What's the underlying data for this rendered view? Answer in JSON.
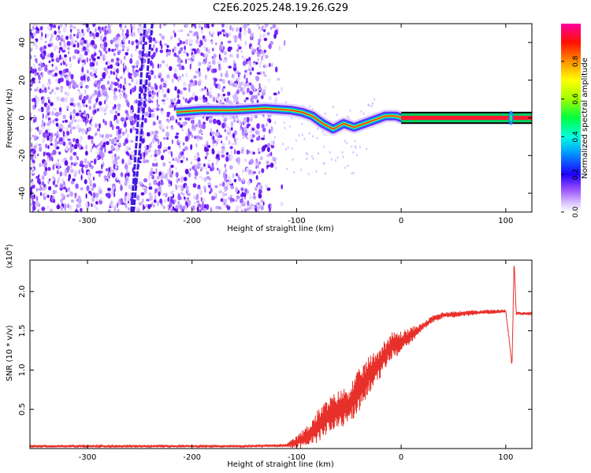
{
  "title": "C2E6.2025.248.19.26.G29",
  "spectrogram": {
    "type": "heatmap",
    "xlabel": "Height of straight line (km)",
    "ylabel": "Frequency (Hz)",
    "xlim": [
      -355,
      125
    ],
    "ylim": [
      -50,
      50
    ],
    "xticks": [
      -300,
      -200,
      -100,
      0,
      100
    ],
    "yticks": [
      -40,
      -20,
      0,
      20,
      40
    ],
    "noise_region": [
      -355,
      -120
    ],
    "signal_track": {
      "x": [
        -215,
        -190,
        -160,
        -130,
        -105,
        -95,
        -85,
        -75,
        -65,
        -55,
        -45,
        -35,
        -25,
        -15,
        -5,
        0,
        50,
        100,
        125
      ],
      "y": [
        3,
        4,
        4,
        5,
        4,
        3,
        1,
        -3,
        -6,
        -3,
        -5,
        -3,
        -1,
        1,
        1,
        0,
        0,
        0,
        0
      ]
    },
    "streaks": [
      {
        "x": [
          -258,
          -245
        ],
        "y": [
          -50,
          50
        ]
      },
      {
        "x": [
          -256,
          -238
        ],
        "y": [
          -50,
          50
        ]
      }
    ],
    "colorbar": {
      "label": "Normalized spectral amplitude",
      "ticks": [
        0.0,
        0.2,
        0.4,
        0.6,
        0.8
      ],
      "tick_labels": [
        "0.0",
        "0.2",
        "0.4",
        "0.6",
        "0.8"
      ],
      "colors": [
        "#ffffff",
        "#c8a8ff",
        "#7a20ff",
        "#0000ff",
        "#00c8ff",
        "#00ff80",
        "#80ff00",
        "#ffff00",
        "#ff8000",
        "#ff0000",
        "#ff00a0"
      ]
    }
  },
  "snr": {
    "type": "line",
    "xlabel": "Height of straight line (km)",
    "ylabel": "SNR (10 * v/v)",
    "scale_label": "(x10",
    "scale_exp": "4",
    "scale_close": ")",
    "xlim": [
      -355,
      125
    ],
    "ylim": [
      0,
      2.4
    ],
    "xticks": [
      -300,
      -200,
      -100,
      0,
      100
    ],
    "yticks": [
      0.5,
      1.0,
      1.5,
      2.0
    ],
    "ytick_labels": [
      "0.5",
      "1.0",
      "1.5",
      "2.0"
    ],
    "line_color": "#e8302a",
    "series": {
      "x": [
        -355,
        -300,
        -250,
        -200,
        -150,
        -110,
        -100,
        -90,
        -80,
        -70,
        -60,
        -50,
        -40,
        -30,
        -20,
        -10,
        0,
        10,
        20,
        30,
        40,
        60,
        80,
        100,
        104,
        106,
        108,
        110,
        125
      ],
      "y": [
        0.03,
        0.03,
        0.03,
        0.03,
        0.03,
        0.04,
        0.08,
        0.15,
        0.28,
        0.42,
        0.5,
        0.55,
        0.75,
        0.95,
        1.1,
        1.3,
        1.35,
        1.45,
        1.55,
        1.65,
        1.7,
        1.72,
        1.74,
        1.75,
        1.3,
        1.05,
        2.4,
        1.72,
        1.72
      ]
    },
    "noise_amplitude": [
      [
        -110,
        0.03
      ],
      [
        -80,
        0.35
      ],
      [
        -40,
        0.45
      ],
      [
        0,
        0.25
      ],
      [
        20,
        0.08
      ],
      [
        125,
        0.03
      ]
    ]
  }
}
